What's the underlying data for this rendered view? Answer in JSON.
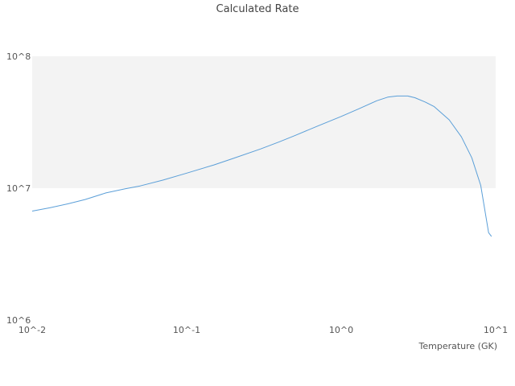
{
  "chart_data": {
    "type": "line",
    "title": "Calculated Rate",
    "xlabel": "Temperature (GK)",
    "ylabel": "",
    "x_scale": "log",
    "y_scale": "log",
    "xlim": [
      0.01,
      10
    ],
    "ylim": [
      1000000.0,
      100000000.0
    ],
    "x_tick_values": [
      0.01,
      0.1,
      1,
      10
    ],
    "x_tick_labels": [
      "10^-2",
      "10^-1",
      "10^0",
      "10^1"
    ],
    "y_tick_values": [
      1000000.0,
      10000000.0,
      100000000.0
    ],
    "y_tick_labels": [
      "10^6",
      "10^7",
      "10^8"
    ],
    "shaded_band_y": [
      10000000.0,
      100000000.0
    ],
    "band_color": "#f3f3f3",
    "line_color": "#5b9fd8",
    "tick_color": "#555555",
    "title_color": "#444444",
    "legend": "off",
    "grid": "off",
    "series": [
      {
        "name": "calculated-rate",
        "x": [
          0.01,
          0.013,
          0.017,
          0.022,
          0.03,
          0.04,
          0.05,
          0.07,
          0.1,
          0.15,
          0.2,
          0.3,
          0.4,
          0.5,
          0.7,
          1.0,
          1.3,
          1.7,
          2.0,
          2.3,
          2.7,
          3.0,
          3.5,
          4.0,
          5.0,
          6.0,
          7.0,
          8.0,
          9.0,
          9.4
        ],
        "y": [
          6700000.0,
          7100000.0,
          7600000.0,
          8200000.0,
          9200000.0,
          9900000.0,
          10400000.0,
          11500000.0,
          13000000.0,
          15000000.0,
          16800000.0,
          19800000.0,
          22500000.0,
          25000000.0,
          29500000.0,
          35000000.0,
          40000000.0,
          46000000.0,
          49000000.0,
          50000000.0,
          50000000.0,
          48500000.0,
          45000000.0,
          41500000.0,
          33000000.0,
          24500000.0,
          17000000.0,
          10500000.0,
          4600000.0,
          4300000.0
        ]
      }
    ]
  }
}
